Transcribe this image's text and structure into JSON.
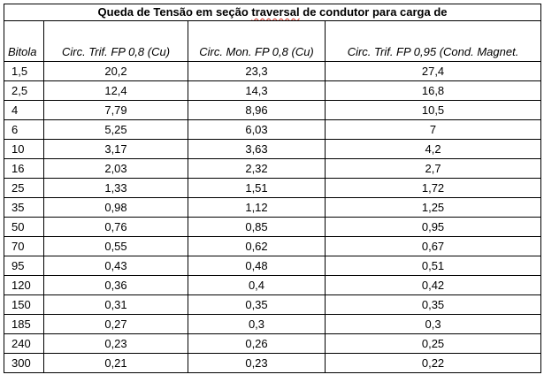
{
  "title": {
    "before": "Queda de Tensão em seção ",
    "flagged": "traversal",
    "after": " de condutor para carga de",
    "flag_color": "#d93025"
  },
  "columns": [
    "Bitola",
    "Circ. Trif. FP 0,8 (Cu)",
    "Circ. Mon. FP 0,8 (Cu)",
    "Circ. Trif. FP 0,95 (Cond. Magnet."
  ],
  "rows": [
    [
      "1,5",
      "20,2",
      "23,3",
      "27,4"
    ],
    [
      "2,5",
      "12,4",
      "14,3",
      "16,8"
    ],
    [
      "4",
      "7,79",
      "8,96",
      "10,5"
    ],
    [
      "6",
      "5,25",
      "6,03",
      "7"
    ],
    [
      "10",
      "3,17",
      "3,63",
      "4,2"
    ],
    [
      "16",
      "2,03",
      "2,32",
      "2,7"
    ],
    [
      "25",
      "1,33",
      "1,51",
      "1,72"
    ],
    [
      "35",
      "0,98",
      "1,12",
      "1,25"
    ],
    [
      "50",
      "0,76",
      "0,85",
      "0,95"
    ],
    [
      "70",
      "0,55",
      "0,62",
      "0,67"
    ],
    [
      "95",
      "0,43",
      "0,48",
      "0,51"
    ],
    [
      "120",
      "0,36",
      "0,4",
      "0,42"
    ],
    [
      "150",
      "0,31",
      "0,35",
      "0,35"
    ],
    [
      "185",
      "0,27",
      "0,3",
      "0,3"
    ],
    [
      "240",
      "0,23",
      "0,26",
      "0,25"
    ],
    [
      "300",
      "0,21",
      "0,23",
      "0,22"
    ]
  ]
}
